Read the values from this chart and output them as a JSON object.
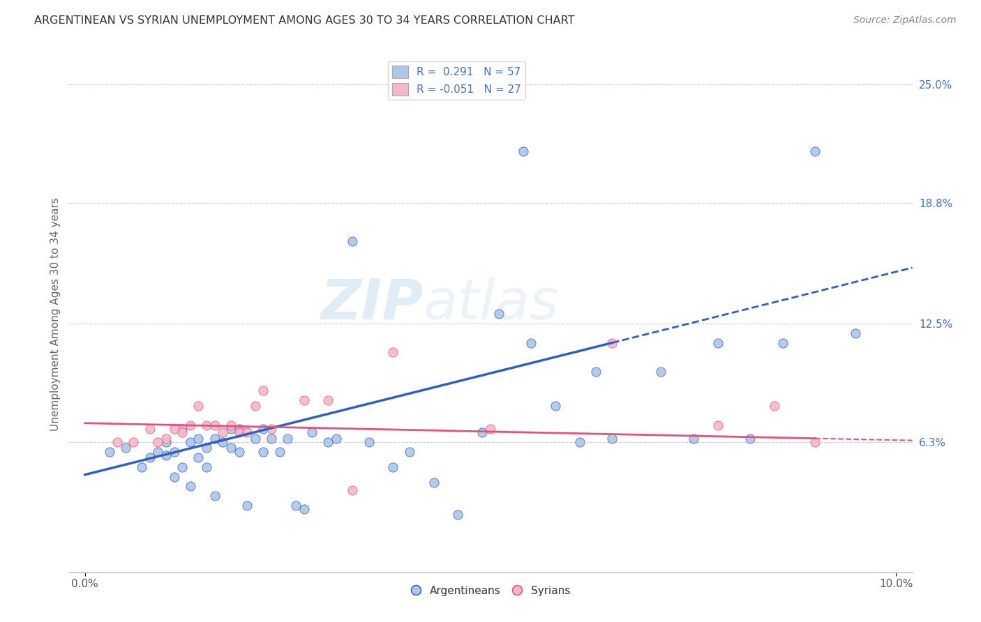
{
  "title": "ARGENTINEAN VS SYRIAN UNEMPLOYMENT AMONG AGES 30 TO 34 YEARS CORRELATION CHART",
  "source": "Source: ZipAtlas.com",
  "ylabel": "Unemployment Among Ages 30 to 34 years",
  "xlim": [
    0.0,
    0.1
  ],
  "ylim": [
    -0.005,
    0.265
  ],
  "ytick_labels_right": [
    "25.0%",
    "18.8%",
    "12.5%",
    "6.3%"
  ],
  "ytick_vals_right": [
    0.25,
    0.188,
    0.125,
    0.063
  ],
  "color_arg": "#aec6e8",
  "color_syr": "#f4b8c8",
  "line_color_arg": "#3060c0",
  "line_color_syr": "#e8507a",
  "watermark": "ZIPatlas",
  "arg_line_x0": 0.0,
  "arg_line_y0": 0.046,
  "arg_line_x1": 0.065,
  "arg_line_y1": 0.115,
  "syr_line_x0": 0.0,
  "syr_line_y0": 0.073,
  "syr_line_x1": 0.09,
  "syr_line_y1": 0.065,
  "argentineans_x": [
    0.003,
    0.005,
    0.007,
    0.008,
    0.009,
    0.01,
    0.01,
    0.011,
    0.011,
    0.012,
    0.012,
    0.013,
    0.013,
    0.014,
    0.014,
    0.015,
    0.015,
    0.016,
    0.016,
    0.017,
    0.018,
    0.018,
    0.019,
    0.019,
    0.02,
    0.021,
    0.022,
    0.022,
    0.023,
    0.024,
    0.025,
    0.026,
    0.027,
    0.028,
    0.03,
    0.031,
    0.033,
    0.035,
    0.038,
    0.04,
    0.043,
    0.046,
    0.049,
    0.051,
    0.054,
    0.055,
    0.058,
    0.061,
    0.063,
    0.065,
    0.071,
    0.075,
    0.078,
    0.082,
    0.086,
    0.09,
    0.095
  ],
  "argentineans_y": [
    0.058,
    0.06,
    0.05,
    0.055,
    0.058,
    0.056,
    0.063,
    0.058,
    0.045,
    0.05,
    0.07,
    0.063,
    0.04,
    0.055,
    0.065,
    0.05,
    0.06,
    0.035,
    0.065,
    0.063,
    0.06,
    0.07,
    0.058,
    0.07,
    0.03,
    0.065,
    0.058,
    0.07,
    0.065,
    0.058,
    0.065,
    0.03,
    0.028,
    0.068,
    0.063,
    0.065,
    0.168,
    0.063,
    0.05,
    0.058,
    0.042,
    0.025,
    0.068,
    0.13,
    0.215,
    0.115,
    0.082,
    0.063,
    0.1,
    0.065,
    0.1,
    0.065,
    0.115,
    0.065,
    0.115,
    0.215,
    0.12
  ],
  "syrians_x": [
    0.004,
    0.006,
    0.008,
    0.009,
    0.01,
    0.011,
    0.012,
    0.013,
    0.014,
    0.015,
    0.016,
    0.017,
    0.018,
    0.019,
    0.02,
    0.021,
    0.022,
    0.023,
    0.027,
    0.03,
    0.033,
    0.038,
    0.05,
    0.065,
    0.078,
    0.085,
    0.09
  ],
  "syrians_y": [
    0.063,
    0.063,
    0.07,
    0.063,
    0.065,
    0.07,
    0.068,
    0.072,
    0.082,
    0.072,
    0.072,
    0.068,
    0.072,
    0.068,
    0.068,
    0.082,
    0.09,
    0.07,
    0.085,
    0.085,
    0.038,
    0.11,
    0.07,
    0.115,
    0.072,
    0.082,
    0.063
  ]
}
